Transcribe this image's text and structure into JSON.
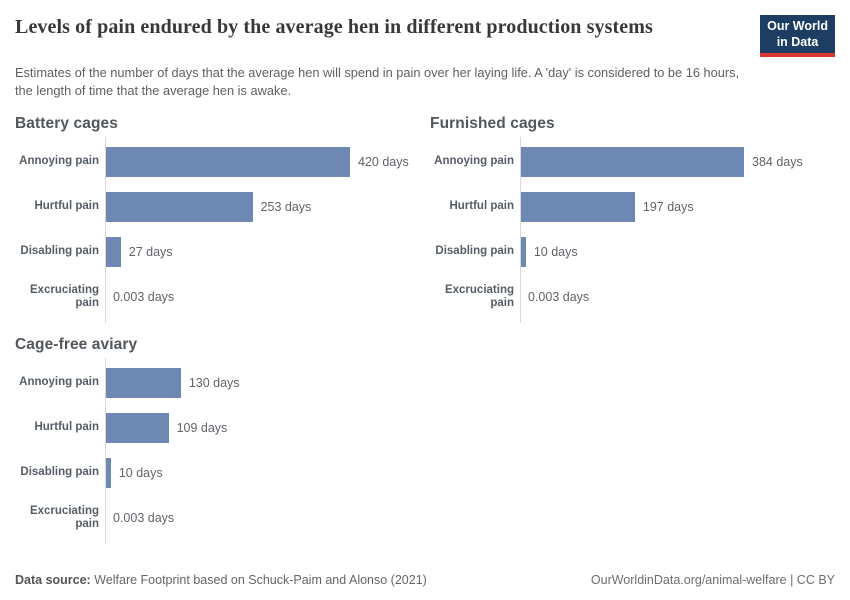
{
  "header": {
    "title": "Levels of pain endured by the average hen in different production systems",
    "subtitle": "Estimates of the number of days that the average hen will spend in pain over her laying life. A 'day' is considered to be 16 hours, the length of time that the average hen is awake.",
    "logo": {
      "line1": "Our World",
      "line2": "in Data"
    }
  },
  "chart_data": {
    "type": "bar",
    "orientation": "horizontal",
    "unit": "days",
    "categories": [
      "Annoying pain",
      "Hurtful pain",
      "Disabling pain",
      "Excruciating pain"
    ],
    "series": [
      {
        "name": "Battery cages",
        "values": [
          420,
          253,
          27,
          0.003
        ],
        "labels": [
          "420 days",
          "253 days",
          "27 days",
          "0.003 days"
        ]
      },
      {
        "name": "Furnished cages",
        "values": [
          384,
          197,
          10,
          0.003
        ],
        "labels": [
          "384 days",
          "197 days",
          "10 days",
          "0.003 days"
        ]
      },
      {
        "name": "Cage-free aviary",
        "values": [
          130,
          109,
          10,
          0.003
        ],
        "labels": [
          "130 days",
          "109 days",
          "10 days",
          "0.003 days"
        ]
      }
    ],
    "xmax": 420,
    "bar_color": "#6d89b3",
    "grid": false,
    "legend": "none"
  },
  "footer": {
    "source_label": "Data source:",
    "source_text": "Welfare Footprint based on Schuck-Paim and Alonso (2021)",
    "link": "OurWorldinData.org/animal-welfare",
    "separator": "|",
    "license": "CC BY"
  },
  "colors": {
    "bar": "#6d89b3",
    "axis_line": "#d9d9d9",
    "logo_bg": "#1d3d63",
    "logo_accent": "#d7362c",
    "title_text": "#383838"
  }
}
